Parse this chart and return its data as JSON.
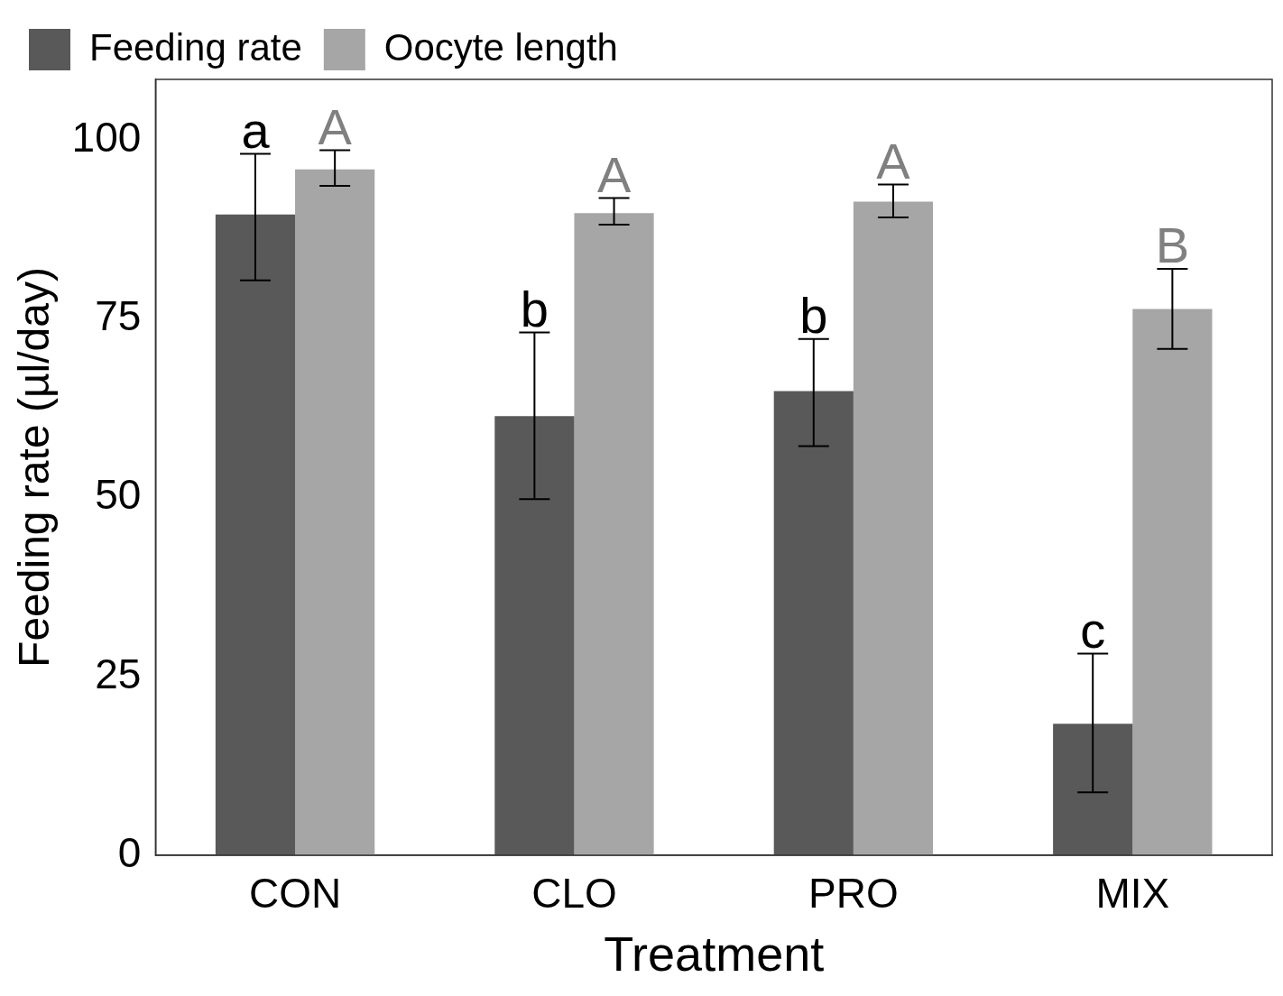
{
  "chart_data": {
    "type": "bar",
    "xlabel": "Treatment",
    "ylabel": "Feeding rate (µl/day)",
    "categories": [
      "CON",
      "CLO",
      "PRO",
      "MIX"
    ],
    "series": [
      {
        "name": "Feeding rate",
        "color": "#595959",
        "values": [
          89.6,
          61.4,
          64.9,
          18.4
        ],
        "errors": [
          [
            80.4,
            98.1
          ],
          [
            49.8,
            73.1
          ],
          [
            57.2,
            72.2
          ],
          [
            8.8,
            28.2
          ]
        ]
      },
      {
        "name": "Oocyte length",
        "color": "#a6a6a6",
        "values": [
          95.9,
          89.8,
          91.4,
          76.4
        ],
        "errors": [
          [
            93.6,
            98.6
          ],
          [
            88.2,
            91.9
          ],
          [
            89.2,
            93.8
          ],
          [
            70.8,
            82.0
          ]
        ]
      }
    ],
    "ylim": [
      0,
      108.5
    ],
    "yticks": [
      0,
      25,
      50,
      75,
      100
    ],
    "grid": false,
    "legend": "top left",
    "annotations": [
      "a",
      "A",
      "b",
      "A",
      "b",
      "A",
      "c",
      "B"
    ]
  }
}
